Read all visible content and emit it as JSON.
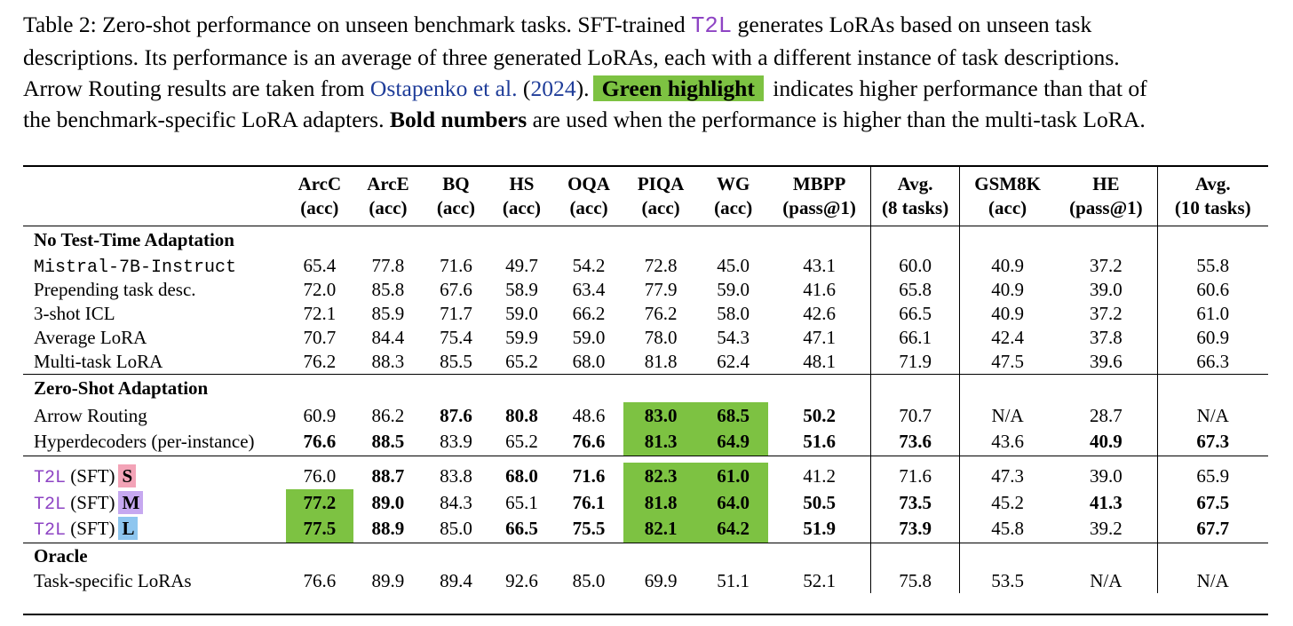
{
  "caption": {
    "l1a": "Table 2: Zero-shot performance on unseen benchmark tasks. SFT-trained ",
    "l1b": "T2L",
    "l1c": " generates LoRAs based on unseen task",
    "l2": "descriptions. Its performance is an average of three generated LoRAs, each with a different instance of task descriptions.",
    "l3a": "Arrow Routing results are taken from ",
    "l3b": "Ostapenko et al.",
    "l3c": " (",
    "l3d": "2024",
    "l3e": ").",
    "l3f": "Green highlight",
    "l3g": " indicates higher performance than that of",
    "l4a": "the benchmark-specific LoRA adapters. ",
    "l4b": "Bold numbers",
    "l4c": " are used when the performance is higher than the multi-task LoRA."
  },
  "headers": [
    [
      "ArcC",
      "(acc)"
    ],
    [
      "ArcE",
      "(acc)"
    ],
    [
      "BQ",
      "(acc)"
    ],
    [
      "HS",
      "(acc)"
    ],
    [
      "OQA",
      "(acc)"
    ],
    [
      "PIQA",
      "(acc)"
    ],
    [
      "WG",
      "(acc)"
    ],
    [
      "MBPP",
      "(pass@1)"
    ],
    [
      "Avg.",
      "(8 tasks)"
    ],
    [
      "GSM8K",
      "(acc)"
    ],
    [
      "HE",
      "(pass@1)"
    ],
    [
      "Avg.",
      "(10 tasks)"
    ]
  ],
  "groups": {
    "g1": "No Test-Time Adaptation",
    "g2": "Zero-Shot Adaptation",
    "g4": "Oracle"
  },
  "rows": {
    "mistral": {
      "name": "Mistral-7B-Instruct",
      "v": [
        "65.4",
        "77.8",
        "71.6",
        "49.7",
        "54.2",
        "72.8",
        "45.0",
        "43.1",
        "60.0",
        "40.9",
        "37.2",
        "55.8"
      ]
    },
    "prepend": {
      "name": "Prepending task desc.",
      "v": [
        "72.0",
        "85.8",
        "67.6",
        "58.9",
        "63.4",
        "77.9",
        "59.0",
        "41.6",
        "65.8",
        "40.9",
        "39.0",
        "60.6"
      ]
    },
    "icl": {
      "name": "3-shot ICL",
      "v": [
        "72.1",
        "85.9",
        "71.7",
        "59.0",
        "66.2",
        "76.2",
        "58.0",
        "42.6",
        "66.5",
        "40.9",
        "37.2",
        "61.0"
      ]
    },
    "avglora": {
      "name": "Average LoRA",
      "v": [
        "70.7",
        "84.4",
        "75.4",
        "59.9",
        "59.0",
        "78.0",
        "54.3",
        "47.1",
        "66.1",
        "42.4",
        "37.8",
        "60.9"
      ]
    },
    "multitask": {
      "name": "Multi-task LoRA",
      "v": [
        "76.2",
        "88.3",
        "85.5",
        "65.2",
        "68.0",
        "81.8",
        "62.4",
        "48.1",
        "71.9",
        "47.5",
        "39.6",
        "66.3"
      ]
    },
    "arrow": {
      "name": "Arrow Routing",
      "v": [
        "60.9",
        "86.2",
        "87.6",
        "80.8",
        "48.6",
        "83.0",
        "68.5",
        "50.2",
        "70.7",
        "N/A",
        "28.7",
        "N/A"
      ]
    },
    "hyper": {
      "name": "Hyperdecoders (per-instance)",
      "v": [
        "76.6",
        "88.5",
        "83.9",
        "65.2",
        "76.6",
        "81.3",
        "64.9",
        "51.6",
        "73.6",
        "43.6",
        "40.9",
        "67.3"
      ]
    },
    "t2ls": {
      "name": "T2L",
      "suffix": " (SFT)",
      "badge": "S",
      "v": [
        "76.0",
        "88.7",
        "83.8",
        "68.0",
        "71.6",
        "82.3",
        "61.0",
        "41.2",
        "71.6",
        "47.3",
        "39.0",
        "65.9"
      ]
    },
    "t2lm": {
      "name": "T2L",
      "suffix": " (SFT)",
      "badge": "M",
      "v": [
        "77.2",
        "89.0",
        "84.3",
        "65.1",
        "76.1",
        "81.8",
        "64.0",
        "50.5",
        "73.5",
        "45.2",
        "41.3",
        "67.5"
      ]
    },
    "t2ll": {
      "name": "T2L",
      "suffix": " (SFT)",
      "badge": "L",
      "v": [
        "77.5",
        "88.9",
        "85.0",
        "66.5",
        "75.5",
        "82.1",
        "64.2",
        "51.9",
        "73.9",
        "45.8",
        "39.2",
        "67.7"
      ]
    },
    "oracle": {
      "name": "Task-specific LoRAs",
      "v": [
        "76.6",
        "89.9",
        "89.4",
        "92.6",
        "85.0",
        "69.9",
        "51.1",
        "52.1",
        "75.8",
        "53.5",
        "N/A",
        "N/A"
      ]
    }
  },
  "colors": {
    "green_highlight": "#7dc242",
    "t2l_purple": "#8e44c4",
    "badge_s": "#f3a3b7",
    "badge_m": "#c6a8f0",
    "badge_l": "#8ec6ef",
    "link_blue": "#1f3d99"
  }
}
